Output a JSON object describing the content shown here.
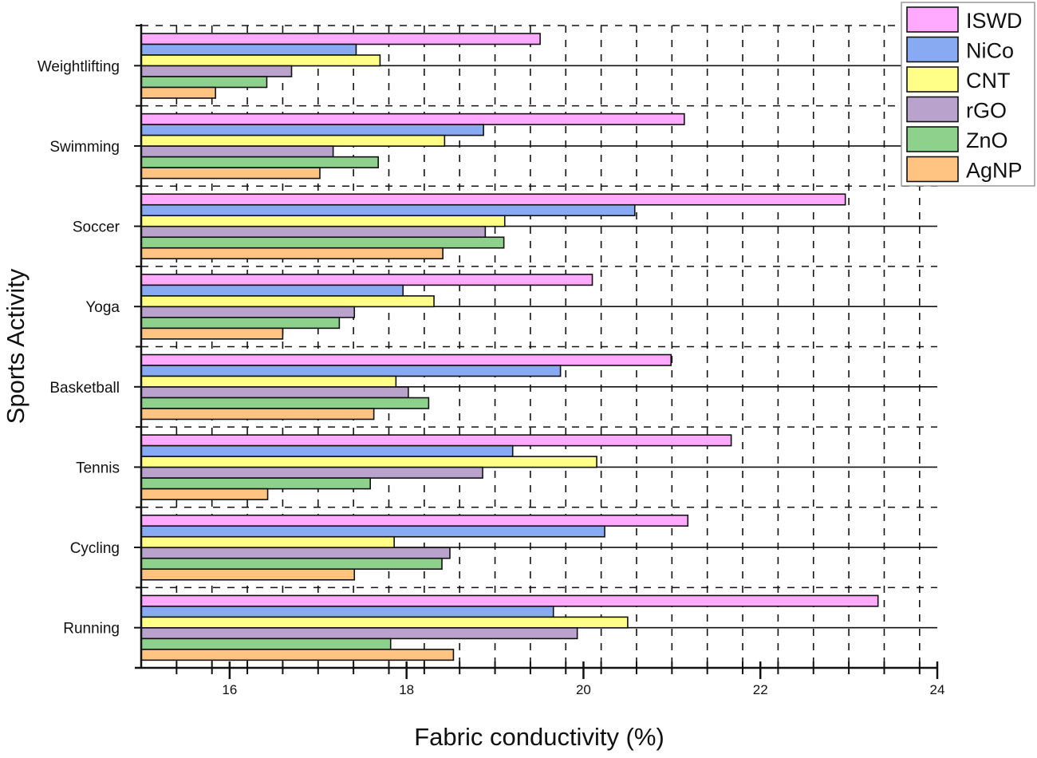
{
  "chart_data": {
    "type": "bar",
    "orientation": "horizontal",
    "title": "",
    "xlabel": "Fabric conductivity (%)",
    "ylabel": "Sports Activity",
    "xlim": [
      15,
      24
    ],
    "xticks": [
      "16",
      "18",
      "20",
      "22",
      "24"
    ],
    "grid": true,
    "legend_position": "top-right",
    "categories": [
      "Weightlifting",
      "Swimming",
      "Soccer",
      "Yoga",
      "Basketball",
      "Tennis",
      "Cycling",
      "Running"
    ],
    "series": [
      {
        "name": "ISWD",
        "color": "#ffaaff",
        "values": [
          19.51,
          21.14,
          22.96,
          20.1,
          20.99,
          21.67,
          21.18,
          23.33
        ]
      },
      {
        "name": "NiCo",
        "color": "#88aaf2",
        "values": [
          17.43,
          18.87,
          20.58,
          17.96,
          19.74,
          19.2,
          20.24,
          19.66
        ]
      },
      {
        "name": "CNT",
        "color": "#ffff88",
        "values": [
          17.7,
          18.43,
          19.11,
          18.31,
          17.88,
          20.15,
          17.86,
          20.5
        ]
      },
      {
        "name": "rGO",
        "color": "#b9a2cc",
        "values": [
          16.7,
          17.17,
          18.89,
          17.41,
          18.02,
          18.86,
          18.49,
          19.93
        ]
      },
      {
        "name": "ZnO",
        "color": "#8ed18c",
        "values": [
          16.42,
          17.68,
          19.1,
          17.24,
          18.25,
          17.59,
          18.4,
          17.82
        ]
      },
      {
        "name": "AgNP",
        "color": "#ffc382",
        "values": [
          15.84,
          17.02,
          18.41,
          16.6,
          17.63,
          16.43,
          17.41,
          18.53
        ]
      }
    ]
  }
}
